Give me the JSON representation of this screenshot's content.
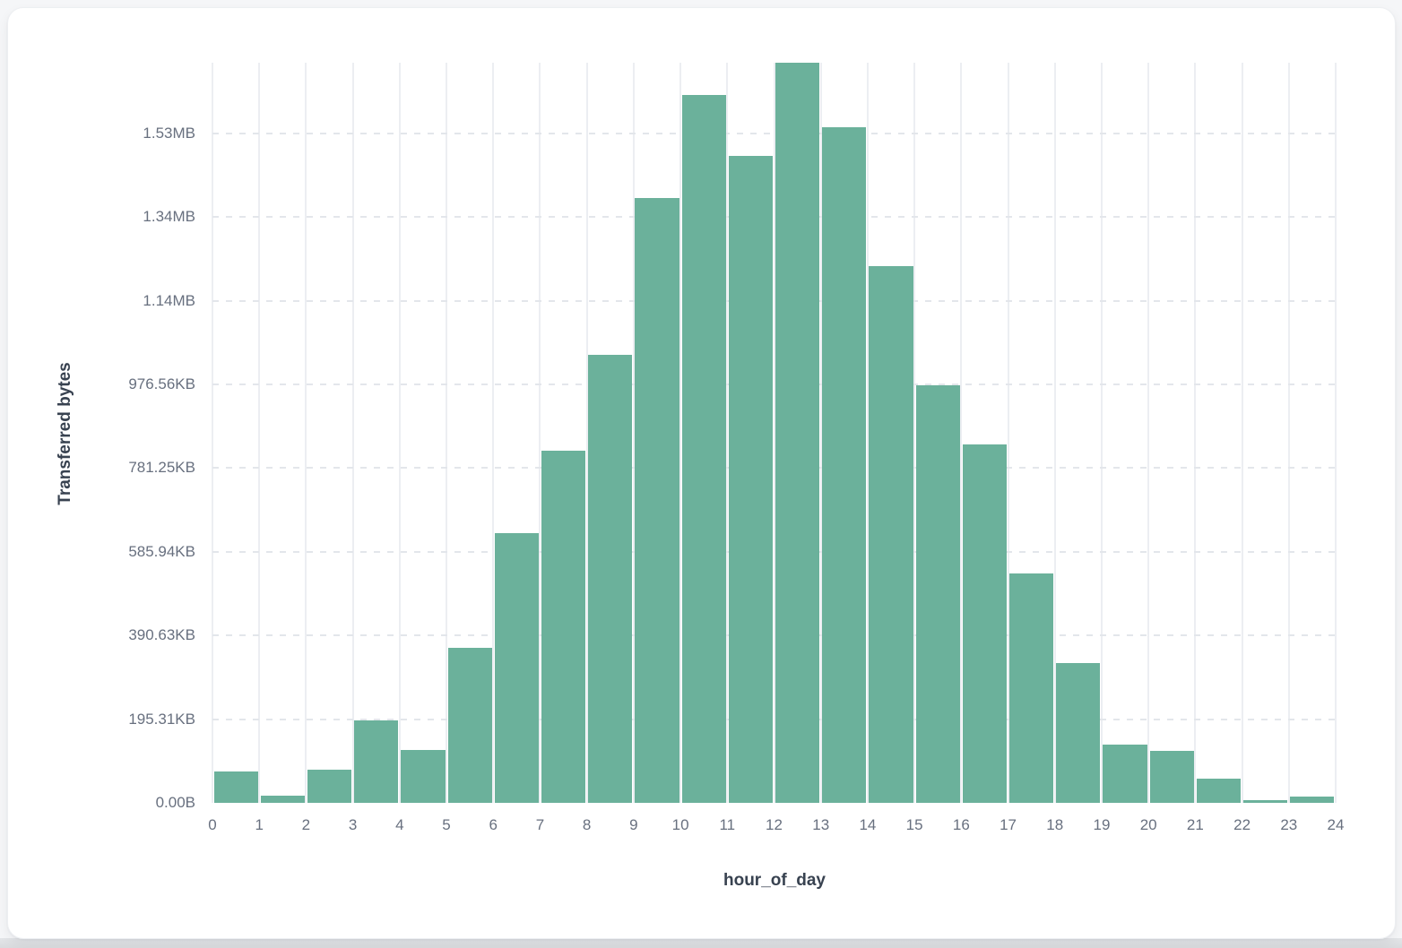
{
  "page": {
    "background_color": "#f5f6f8",
    "card_color": "#ffffff",
    "bottom_strip_color": "#dbdde0"
  },
  "chart_data": {
    "type": "bar",
    "title": "",
    "xlabel": "hour_of_day",
    "ylabel": "Transferred bytes",
    "categories": [
      0,
      1,
      2,
      3,
      4,
      5,
      6,
      7,
      8,
      9,
      10,
      11,
      12,
      13,
      14,
      15,
      16,
      17,
      18,
      19,
      20,
      21,
      22,
      23
    ],
    "values": [
      75000,
      16500,
      79000,
      197000,
      126000,
      370000,
      644000,
      842000,
      1070000,
      1446000,
      1692000,
      1547000,
      1769000,
      1615000,
      1283000,
      999000,
      857000,
      549000,
      334000,
      140000,
      125000,
      57000,
      6000,
      14000
    ],
    "values_unit": "bytes",
    "x_ticks": [
      "0",
      "1",
      "2",
      "3",
      "4",
      "5",
      "6",
      "7",
      "8",
      "9",
      "10",
      "11",
      "12",
      "13",
      "14",
      "15",
      "16",
      "17",
      "18",
      "19",
      "20",
      "21",
      "22",
      "23",
      "24"
    ],
    "y_ticks": [
      {
        "label": "0.00B",
        "value": 0
      },
      {
        "label": "195.31KB",
        "value": 200000
      },
      {
        "label": "390.63KB",
        "value": 400000
      },
      {
        "label": "585.94KB",
        "value": 600000
      },
      {
        "label": "781.25KB",
        "value": 800000
      },
      {
        "label": "976.56KB",
        "value": 1000000
      },
      {
        "label": "1.14MB",
        "value": 1200000
      },
      {
        "label": "1.34MB",
        "value": 1400000
      },
      {
        "label": "1.53MB",
        "value": 1600000
      }
    ],
    "ylim": [
      0,
      1769000
    ],
    "bar_color": "#6bb19b",
    "grid": {
      "vertical": "solid",
      "horizontal": "dashed"
    },
    "legend_position": "none"
  }
}
